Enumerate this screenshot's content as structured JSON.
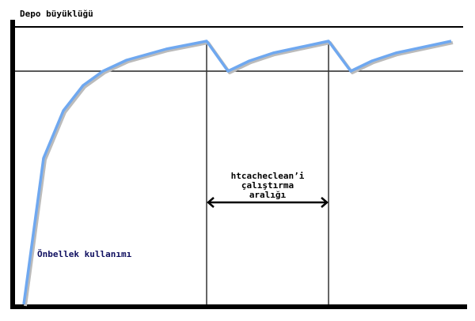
{
  "labels": {
    "y_axis": "Depo büyüklüğü",
    "curve": "Önbellek kullanımı",
    "interval_line1": "htcacheclean’i",
    "interval_line2": "çalıştırma",
    "interval_line3": "aralığı"
  },
  "colors": {
    "curve": "#6fa8f0",
    "axis": "#000000",
    "curve_label": "#101060"
  }
}
